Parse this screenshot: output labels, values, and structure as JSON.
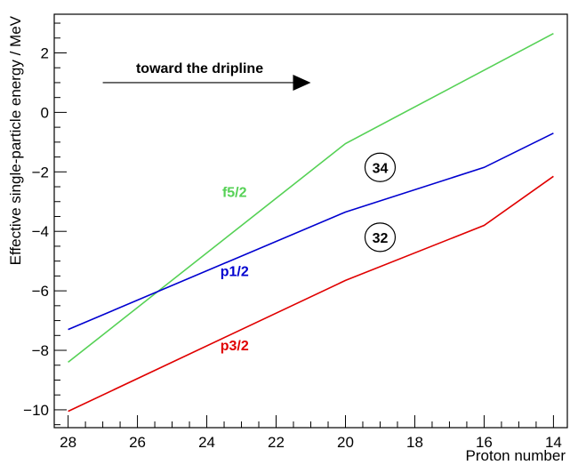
{
  "chart_data": {
    "type": "line",
    "xlabel": "Proton number",
    "ylabel": "Effective single-particle energy / MeV",
    "xlim": [
      28.4,
      13.6
    ],
    "ylim": [
      -10.6,
      3.3
    ],
    "x_reversed": true,
    "xticks": [
      28,
      26,
      24,
      22,
      20,
      18,
      16,
      14
    ],
    "yticks": [
      -10,
      -8,
      -6,
      -4,
      -2,
      0,
      2
    ],
    "grid": false,
    "series": [
      {
        "name": "f5/2",
        "color": "#55d155",
        "x": [
          28,
          20,
          14
        ],
        "y": [
          -8.4,
          -1.05,
          2.65
        ]
      },
      {
        "name": "p1/2",
        "color": "#0000d0",
        "x": [
          28,
          20,
          16,
          14
        ],
        "y": [
          -7.3,
          -3.35,
          -1.85,
          -0.7
        ]
      },
      {
        "name": "p3/2",
        "color": "#e00000",
        "x": [
          28,
          20,
          16,
          14
        ],
        "y": [
          -10.05,
          -5.65,
          -3.8,
          -2.15
        ]
      }
    ],
    "series_label_anchor": [
      {
        "x": 23.2,
        "y": -2.85
      },
      {
        "x": 23.2,
        "y": -5.5
      },
      {
        "x": 23.2,
        "y": -8.0
      }
    ],
    "annotations": [
      {
        "text": "toward the dripline",
        "x_start": 27,
        "x_end": 21.0,
        "y": 1.0
      }
    ],
    "magic_numbers": [
      {
        "text": "34",
        "x": 19.0,
        "y": -1.85
      },
      {
        "text": "32",
        "x": 19.0,
        "y": -4.2
      }
    ]
  }
}
